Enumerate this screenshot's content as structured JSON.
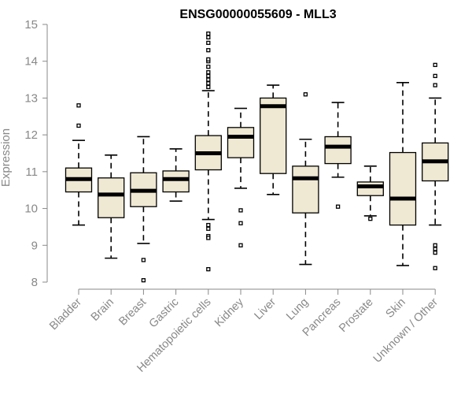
{
  "chart_data": {
    "type": "boxplot",
    "title": "ENSG00000055609 - MLL3",
    "xlabel": "",
    "ylabel": "Expression",
    "ylim": [
      8,
      15
    ],
    "yticks": [
      8,
      9,
      10,
      11,
      12,
      13,
      14,
      15
    ],
    "box_fill": "#efe8d2",
    "axis_color": "#888888",
    "categories": [
      "Bladder",
      "Brain",
      "Breast",
      "Gastric",
      "Hematopoietic cells",
      "Kidney",
      "Liver",
      "Lung",
      "Pancreas",
      "Prostate",
      "Skin",
      "Unknown / Other"
    ],
    "boxes": [
      {
        "name": "Bladder",
        "whisker_low": 9.55,
        "q1": 10.45,
        "median": 10.8,
        "q3": 11.1,
        "whisker_high": 11.85,
        "outliers": [
          12.25,
          12.8
        ]
      },
      {
        "name": "Brain",
        "whisker_low": 8.65,
        "q1": 9.75,
        "median": 10.38,
        "q3": 10.83,
        "whisker_high": 11.45,
        "outliers": []
      },
      {
        "name": "Breast",
        "whisker_low": 9.05,
        "q1": 10.05,
        "median": 10.48,
        "q3": 10.97,
        "whisker_high": 11.95,
        "outliers": [
          8.6,
          8.05
        ]
      },
      {
        "name": "Gastric",
        "whisker_low": 10.2,
        "q1": 10.45,
        "median": 10.8,
        "q3": 11.02,
        "whisker_high": 11.62,
        "outliers": []
      },
      {
        "name": "Hematopoietic cells",
        "whisker_low": 9.7,
        "q1": 11.05,
        "median": 11.5,
        "q3": 11.98,
        "whisker_high": 13.2,
        "outliers": [
          13.3,
          13.4,
          13.5,
          13.6,
          13.7,
          13.85,
          14.0,
          14.05,
          14.3,
          14.5,
          14.65,
          14.75,
          9.55,
          9.45,
          9.25,
          9.2,
          8.35
        ]
      },
      {
        "name": "Kidney",
        "whisker_low": 10.55,
        "q1": 11.38,
        "median": 11.95,
        "q3": 12.2,
        "whisker_high": 12.72,
        "outliers": [
          9.95,
          9.6,
          9.0
        ]
      },
      {
        "name": "Liver",
        "whisker_low": 10.38,
        "q1": 10.95,
        "median": 12.78,
        "q3": 13.0,
        "whisker_high": 13.35,
        "outliers": []
      },
      {
        "name": "Lung",
        "whisker_low": 8.48,
        "q1": 9.88,
        "median": 10.82,
        "q3": 11.15,
        "whisker_high": 11.88,
        "outliers": [
          13.1
        ]
      },
      {
        "name": "Pancreas",
        "whisker_low": 10.85,
        "q1": 11.22,
        "median": 11.68,
        "q3": 11.95,
        "whisker_high": 12.88,
        "outliers": [
          10.05
        ]
      },
      {
        "name": "Prostate",
        "whisker_low": 9.8,
        "q1": 10.35,
        "median": 10.6,
        "q3": 10.72,
        "whisker_high": 11.15,
        "outliers": [
          9.72
        ]
      },
      {
        "name": "Skin",
        "whisker_low": 8.45,
        "q1": 9.55,
        "median": 10.27,
        "q3": 11.52,
        "whisker_high": 13.42,
        "outliers": []
      },
      {
        "name": "Unknown / Other",
        "whisker_low": 9.55,
        "q1": 10.75,
        "median": 11.28,
        "q3": 11.78,
        "whisker_high": 13.0,
        "outliers": [
          13.35,
          13.6,
          13.9,
          9.0,
          8.9,
          8.8,
          8.38
        ]
      }
    ]
  }
}
